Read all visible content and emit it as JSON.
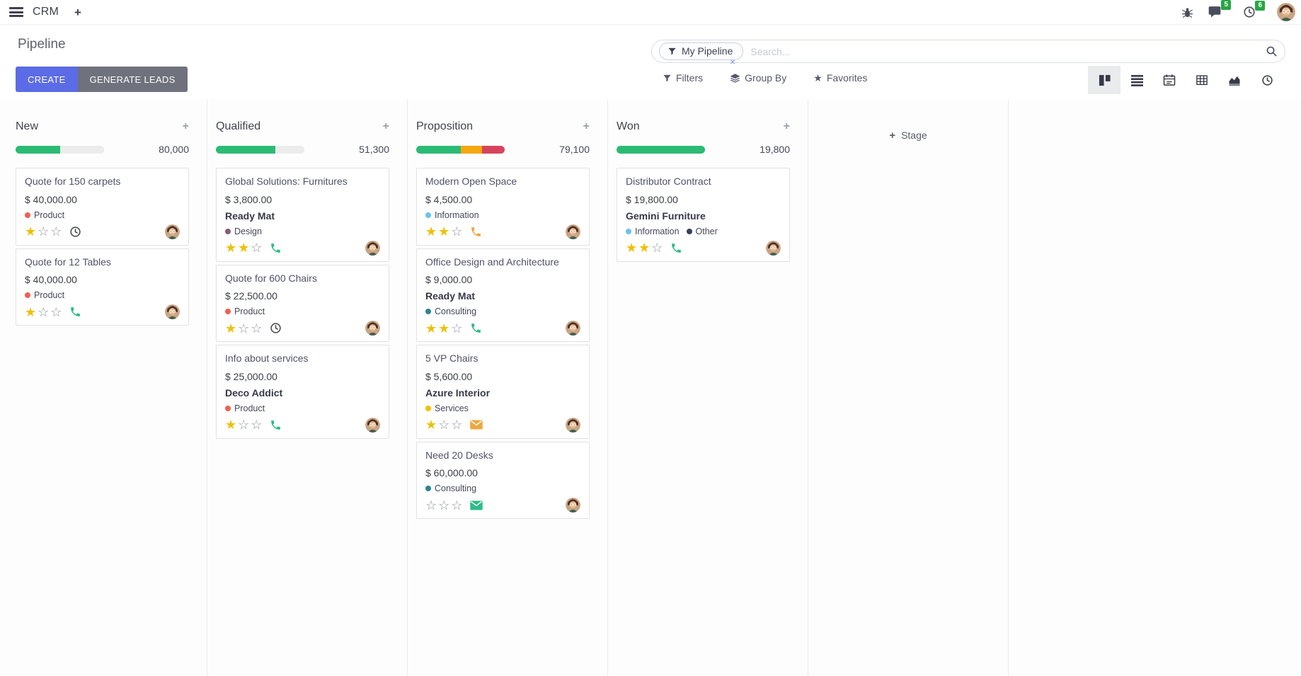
{
  "topbar": {
    "app_name": "CRM",
    "messages_badge": "5",
    "activities_badge": "6"
  },
  "control_panel": {
    "title": "Pipeline",
    "create_button": "CREATE",
    "generate_leads_button": "GENERATE LEADS",
    "search": {
      "facet_label": "My Pipeline",
      "placeholder": "Search...",
      "remove_facet_glyph": "×"
    },
    "filters_button": "Filters",
    "group_by_button": "Group By",
    "favorites_button": "Favorites"
  },
  "colors": {
    "primary": "#5c6ce6",
    "muted_button": "#6f717c",
    "success": "#2cbb74",
    "warning": "#f4a70e",
    "danger": "#d6445c",
    "badge_green": "#28a745",
    "star_gold": "#efc007"
  },
  "board": {
    "add_stage_label": "Stage",
    "columns": [
      {
        "name": "New",
        "total": "80,000",
        "progress": [
          {
            "color": "#2cbb74",
            "percent": 50
          },
          {
            "color": "#ececec",
            "percent": 50
          }
        ],
        "cards": [
          {
            "title": "Quote for 150 carpets",
            "amount": "$ 40,000.00",
            "tags": [
              {
                "label": "Product",
                "color": "#f06050"
              }
            ],
            "stars": 1,
            "activity_icon": "clock",
            "activity_color": "#43454f"
          },
          {
            "title": "Quote for 12 Tables",
            "amount": "$ 40,000.00",
            "tags": [
              {
                "label": "Product",
                "color": "#f06050"
              }
            ],
            "stars": 1,
            "activity_icon": "phone",
            "activity_color": "#2dbd87"
          }
        ]
      },
      {
        "name": "Qualified",
        "total": "51,300",
        "progress": [
          {
            "color": "#2cbb74",
            "percent": 67
          },
          {
            "color": "#ececec",
            "percent": 33
          }
        ],
        "cards": [
          {
            "title": "Global Solutions: Furnitures",
            "amount": "$ 3,800.00",
            "partner": "Ready Mat",
            "tags": [
              {
                "label": "Design",
                "color": "#875a7b"
              }
            ],
            "stars": 2,
            "activity_icon": "phone",
            "activity_color": "#2dbd87"
          },
          {
            "title": "Quote for 600 Chairs",
            "amount": "$ 22,500.00",
            "tags": [
              {
                "label": "Product",
                "color": "#f06050"
              }
            ],
            "stars": 1,
            "activity_icon": "clock",
            "activity_color": "#43454f"
          },
          {
            "title": "Info about services",
            "amount": "$ 25,000.00",
            "partner": "Deco Addict",
            "tags": [
              {
                "label": "Product",
                "color": "#f06050"
              }
            ],
            "stars": 1,
            "activity_icon": "phone",
            "activity_color": "#2dbd87"
          }
        ]
      },
      {
        "name": "Proposition",
        "total": "79,100",
        "progress": [
          {
            "color": "#2cbb74",
            "percent": 50
          },
          {
            "color": "#f4a70e",
            "percent": 24
          },
          {
            "color": "#d6445c",
            "percent": 26
          }
        ],
        "cards": [
          {
            "title": "Modern Open Space",
            "amount": "$ 4,500.00",
            "tags": [
              {
                "label": "Information",
                "color": "#6cc1ed"
              }
            ],
            "stars": 2,
            "activity_icon": "phone",
            "activity_color": "#eda73f"
          },
          {
            "title": "Office Design and Architecture",
            "amount": "$ 9,000.00",
            "partner": "Ready Mat",
            "tags": [
              {
                "label": "Consulting",
                "color": "#2c8397"
              }
            ],
            "stars": 2,
            "activity_icon": "phone",
            "activity_color": "#2dbd87"
          },
          {
            "title": "5 VP Chairs",
            "amount": "$ 5,600.00",
            "partner": "Azure Interior",
            "tags": [
              {
                "label": "Services",
                "color": "#efc200"
              }
            ],
            "stars": 1,
            "activity_icon": "mail",
            "activity_color": "#eda73f"
          },
          {
            "title": "Need 20 Desks",
            "amount": "$ 60,000.00",
            "tags": [
              {
                "label": "Consulting",
                "color": "#2c8397"
              }
            ],
            "stars": 0,
            "activity_icon": "mail",
            "activity_color": "#2dbd87"
          }
        ]
      },
      {
        "name": "Won",
        "total": "19,800",
        "progress": [
          {
            "color": "#2cbb74",
            "percent": 100
          }
        ],
        "cards": [
          {
            "title": "Distributor Contract",
            "amount": "$ 19,800.00",
            "partner": "Gemini Furniture",
            "tags": [
              {
                "label": "Information",
                "color": "#6cc1ed"
              },
              {
                "label": "Other",
                "color": "#374259"
              }
            ],
            "stars": 2,
            "activity_icon": "phone",
            "activity_color": "#2dbd87"
          }
        ]
      }
    ]
  }
}
